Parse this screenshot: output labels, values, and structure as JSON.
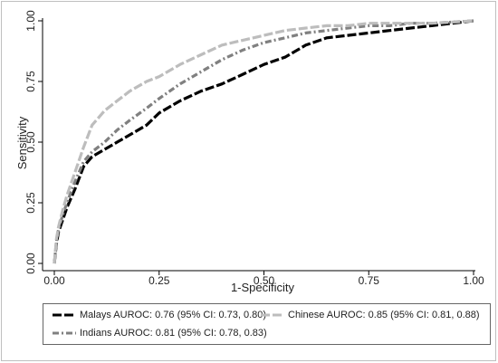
{
  "chart_data": {
    "type": "line",
    "title": "",
    "xlabel": "1-Specificity",
    "ylabel": "Sensitivity",
    "xlim": [
      0,
      1
    ],
    "ylim": [
      0,
      1
    ],
    "xticks": [
      "0.00",
      "0.25",
      "0.50",
      "0.75",
      "1.00"
    ],
    "yticks": [
      "0.00",
      "0.25",
      "0.50",
      "0.75",
      "1.00"
    ],
    "grid": false,
    "legend_position": "bottom",
    "series": [
      {
        "name": "Malays AUROC: 0.76 (95% CI: 0.73, 0.80)",
        "color": "#000000",
        "dash": "long-dash",
        "points": [
          [
            0,
            0
          ],
          [
            0.005,
            0.08
          ],
          [
            0.01,
            0.13
          ],
          [
            0.02,
            0.18
          ],
          [
            0.03,
            0.23
          ],
          [
            0.05,
            0.31
          ],
          [
            0.07,
            0.4
          ],
          [
            0.09,
            0.44
          ],
          [
            0.12,
            0.47
          ],
          [
            0.15,
            0.5
          ],
          [
            0.18,
            0.53
          ],
          [
            0.22,
            0.57
          ],
          [
            0.25,
            0.62
          ],
          [
            0.3,
            0.67
          ],
          [
            0.35,
            0.71
          ],
          [
            0.4,
            0.74
          ],
          [
            0.45,
            0.78
          ],
          [
            0.5,
            0.82
          ],
          [
            0.55,
            0.85
          ],
          [
            0.6,
            0.9
          ],
          [
            0.65,
            0.93
          ],
          [
            0.7,
            0.94
          ],
          [
            0.75,
            0.95
          ],
          [
            0.8,
            0.96
          ],
          [
            0.85,
            0.97
          ],
          [
            0.9,
            0.98
          ],
          [
            0.95,
            0.99
          ],
          [
            1.0,
            1.0
          ]
        ]
      },
      {
        "name": "Chinese AUROC: 0.85 (95% CI: 0.81, 0.88)",
        "color": "#bdbdbd",
        "dash": "long-dash",
        "points": [
          [
            0,
            0
          ],
          [
            0.005,
            0.1
          ],
          [
            0.01,
            0.15
          ],
          [
            0.02,
            0.22
          ],
          [
            0.03,
            0.28
          ],
          [
            0.05,
            0.38
          ],
          [
            0.07,
            0.48
          ],
          [
            0.09,
            0.57
          ],
          [
            0.12,
            0.63
          ],
          [
            0.15,
            0.67
          ],
          [
            0.18,
            0.71
          ],
          [
            0.22,
            0.75
          ],
          [
            0.25,
            0.77
          ],
          [
            0.3,
            0.82
          ],
          [
            0.35,
            0.86
          ],
          [
            0.4,
            0.9
          ],
          [
            0.45,
            0.92
          ],
          [
            0.5,
            0.94
          ],
          [
            0.55,
            0.96
          ],
          [
            0.6,
            0.97
          ],
          [
            0.65,
            0.98
          ],
          [
            0.7,
            0.98
          ],
          [
            0.75,
            0.99
          ],
          [
            0.85,
            0.99
          ],
          [
            0.9,
            0.99
          ],
          [
            1.0,
            1.0
          ]
        ]
      },
      {
        "name": "Indians AUROC: 0.81 (95% CI: 0.78, 0.83)",
        "color": "#808080",
        "dash": "dash-dot",
        "points": [
          [
            0,
            0
          ],
          [
            0.005,
            0.09
          ],
          [
            0.01,
            0.14
          ],
          [
            0.02,
            0.2
          ],
          [
            0.03,
            0.25
          ],
          [
            0.05,
            0.34
          ],
          [
            0.07,
            0.42
          ],
          [
            0.09,
            0.46
          ],
          [
            0.12,
            0.5
          ],
          [
            0.15,
            0.55
          ],
          [
            0.18,
            0.59
          ],
          [
            0.22,
            0.64
          ],
          [
            0.25,
            0.68
          ],
          [
            0.3,
            0.74
          ],
          [
            0.35,
            0.79
          ],
          [
            0.4,
            0.84
          ],
          [
            0.45,
            0.88
          ],
          [
            0.5,
            0.91
          ],
          [
            0.55,
            0.93
          ],
          [
            0.6,
            0.95
          ],
          [
            0.65,
            0.96
          ],
          [
            0.7,
            0.97
          ],
          [
            0.75,
            0.98
          ],
          [
            0.8,
            0.98
          ],
          [
            0.85,
            0.99
          ],
          [
            0.9,
            0.99
          ],
          [
            1.0,
            1.0
          ]
        ]
      }
    ]
  }
}
